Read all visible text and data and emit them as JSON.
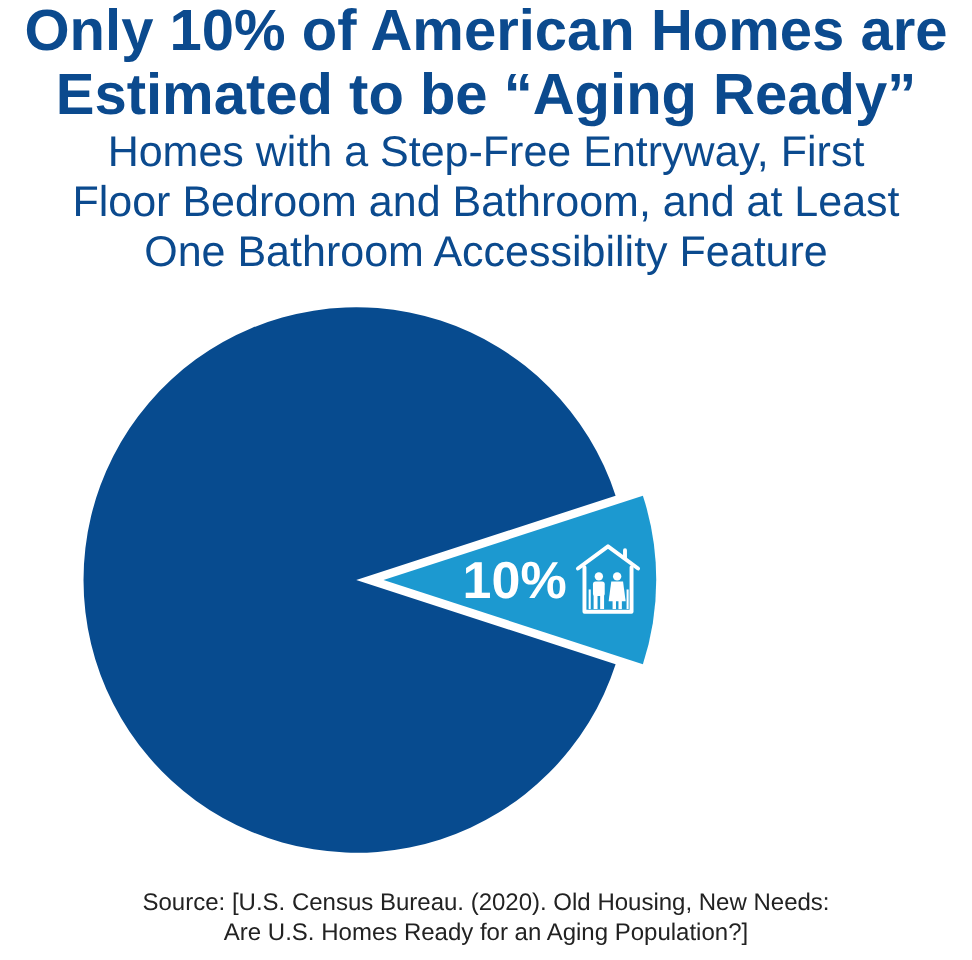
{
  "chart_data": {
    "type": "pie",
    "title": "Only 10% of American Homes are Estimated to be “Aging Ready”",
    "subtitle": "Homes with a Step-Free Entryway, First Floor Bedroom and Bathroom, and at Least One Bathroom Accessibility Feature",
    "categories": [
      null,
      null
    ],
    "values": [
      90,
      10
    ],
    "colors": [
      "#074b8f",
      "#1c99d0"
    ],
    "value_labels": [
      null,
      "10%"
    ],
    "annotations": [
      "Source: [U.S. Census Bureau. (2020). Old Housing, New Needs: Are U.S. Homes Ready for an Aging Population?]"
    ]
  }
}
